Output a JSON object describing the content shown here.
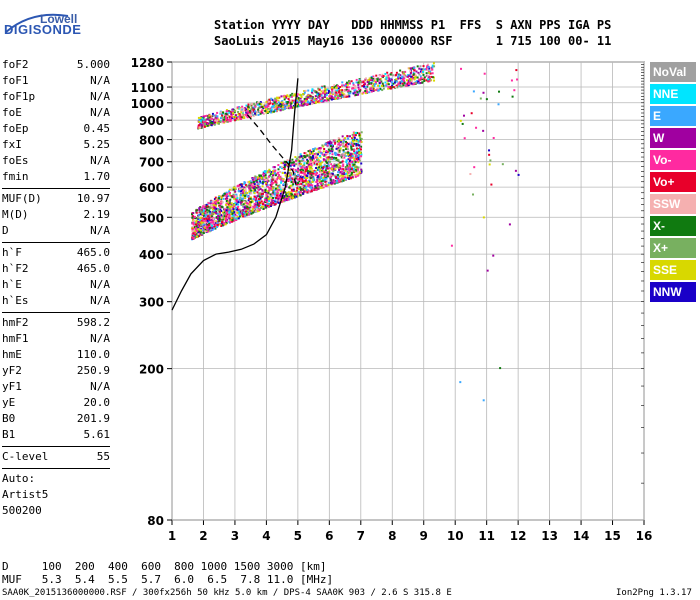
{
  "logo": {
    "top": "Lowell",
    "main": "DIGISONDE"
  },
  "header": {
    "line1": "Station YYYY DAY   DDD HHMMSS P1  FFS  S AXN PPS IGA PS",
    "line2": "SaoLuis 2015 May16 136 000000 RSF      1 715 100 00- 11"
  },
  "params": [
    {
      "name": "foF2",
      "value": "5.000"
    },
    {
      "name": "foF1",
      "value": "N/A"
    },
    {
      "name": "foF1p",
      "value": "N/A"
    },
    {
      "name": "foE",
      "value": "N/A"
    },
    {
      "name": "foEp",
      "value": "0.45"
    },
    {
      "name": "fxI",
      "value": "5.25"
    },
    {
      "name": "foEs",
      "value": "N/A"
    },
    {
      "name": "fmin",
      "value": "1.70"
    }
  ],
  "params2": [
    {
      "name": "MUF(D)",
      "value": "10.97"
    },
    {
      "name": "M(D)",
      "value": "2.19"
    },
    {
      "name": "D",
      "value": "N/A"
    }
  ],
  "params3": [
    {
      "name": "h`F",
      "value": "465.0"
    },
    {
      "name": "h`F2",
      "value": "465.0"
    },
    {
      "name": "h`E",
      "value": "N/A"
    },
    {
      "name": "h`Es",
      "value": "N/A"
    }
  ],
  "params4": [
    {
      "name": "hmF2",
      "value": "598.2"
    },
    {
      "name": "hmF1",
      "value": "N/A"
    },
    {
      "name": "hmE",
      "value": "110.0"
    },
    {
      "name": "yF2",
      "value": "250.9"
    },
    {
      "name": "yF1",
      "value": "N/A"
    },
    {
      "name": "yE",
      "value": "20.0"
    },
    {
      "name": "B0",
      "value": "201.9"
    },
    {
      "name": "B1",
      "value": "5.61"
    }
  ],
  "clevel": {
    "name": "C-level",
    "value": "55"
  },
  "auto": {
    "line1": "Auto:",
    "line2": "Artist5",
    "line3": "500200"
  },
  "legend": [
    {
      "label": "NoVal",
      "color": "#a0a0a0"
    },
    {
      "label": "NNE",
      "color": "#00e5ff"
    },
    {
      "label": "E",
      "color": "#3aa8ff"
    },
    {
      "label": "W",
      "color": "#a000a0"
    },
    {
      "label": "Vo-",
      "color": "#ff2aa0"
    },
    {
      "label": "Vo+",
      "color": "#e8002a"
    },
    {
      "label": "SSW",
      "color": "#f5b0b0"
    },
    {
      "label": "X-",
      "color": "#107a10"
    },
    {
      "label": "X+",
      "color": "#78b060"
    },
    {
      "label": "SSE",
      "color": "#d8d800"
    },
    {
      "label": "NNW",
      "color": "#1a00c8"
    }
  ],
  "dmuf": {
    "d_line": "D     100  200  400  600  800 1000 1500 3000 [km]",
    "muf_line": "MUF   5.3  5.4  5.5  5.7  6.0  6.5  7.8 11.0 [MHz]"
  },
  "footer": {
    "left": "SAA0K_2015136000000.RSF / 300fx256h 50 kHz 5.0 km / DPS-4 SAA0K 903 / 2.6 S 315.8 E",
    "right": "Ion2Png 1.3.17"
  },
  "chart_data": {
    "type": "scatter",
    "xlim": [
      1,
      16
    ],
    "ylim": [
      80,
      1280
    ],
    "y_log": true,
    "xticks": [
      1,
      2,
      3,
      4,
      5,
      6,
      7,
      8,
      9,
      10,
      11,
      12,
      13,
      14,
      15,
      16
    ],
    "yticks": [
      80,
      200,
      300,
      400,
      500,
      600,
      700,
      800,
      900,
      1000,
      1100,
      1280
    ],
    "grid": true,
    "profile_curve": {
      "x": [
        1.0,
        1.3,
        1.6,
        2.0,
        2.4,
        2.8,
        3.2,
        3.6,
        4.0,
        4.3,
        4.6,
        4.8,
        4.9,
        5.0
      ],
      "y": [
        285,
        320,
        355,
        385,
        400,
        405,
        412,
        425,
        450,
        500,
        600,
        750,
        950,
        1160
      ]
    },
    "dashed_curve": {
      "x": [
        3.4,
        3.8,
        4.2,
        4.5,
        4.7,
        4.85,
        4.95
      ],
      "y": [
        930,
        850,
        770,
        720,
        690,
        660,
        600
      ]
    },
    "traces": [
      {
        "name": "F-trace",
        "x_start": 1.6,
        "x_end": 7.0,
        "y_low_start": 440,
        "y_low_end": 650,
        "y_high_start": 520,
        "y_high_end": 860
      },
      {
        "name": "F-multihop",
        "x_start": 1.8,
        "x_end": 9.3,
        "y_low_start": 860,
        "y_low_end": 1150,
        "y_high_start": 920,
        "y_high_end": 1280
      }
    ]
  }
}
